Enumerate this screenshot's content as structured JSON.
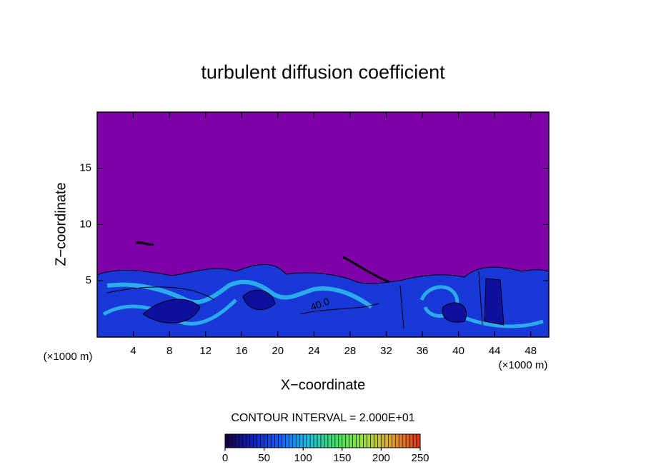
{
  "chart_data": {
    "type": "contour",
    "title": "turbulent diffusion coefficient",
    "xlabel": "X−coordinate",
    "ylabel": "Z−coordinate",
    "x_unit": "(×1000 m)",
    "xlim": [
      0,
      50
    ],
    "xticks": [
      4,
      8,
      12,
      16,
      20,
      24,
      28,
      32,
      36,
      40,
      44,
      48
    ],
    "ylim": [
      0,
      20
    ],
    "yticks": [
      5,
      10,
      15
    ],
    "contour_interval_label": "CONTOUR INTERVAL = 2.000E+01",
    "contour_label": "40.0",
    "clim": [
      0,
      250
    ],
    "colorbar_ticks": [
      0,
      50,
      100,
      150,
      200,
      250
    ],
    "colormap": [
      "#1a0040",
      "#1020c0",
      "#1060ff",
      "#20c0e0",
      "#40e060",
      "#a0e040",
      "#e0a030",
      "#e03020"
    ]
  }
}
